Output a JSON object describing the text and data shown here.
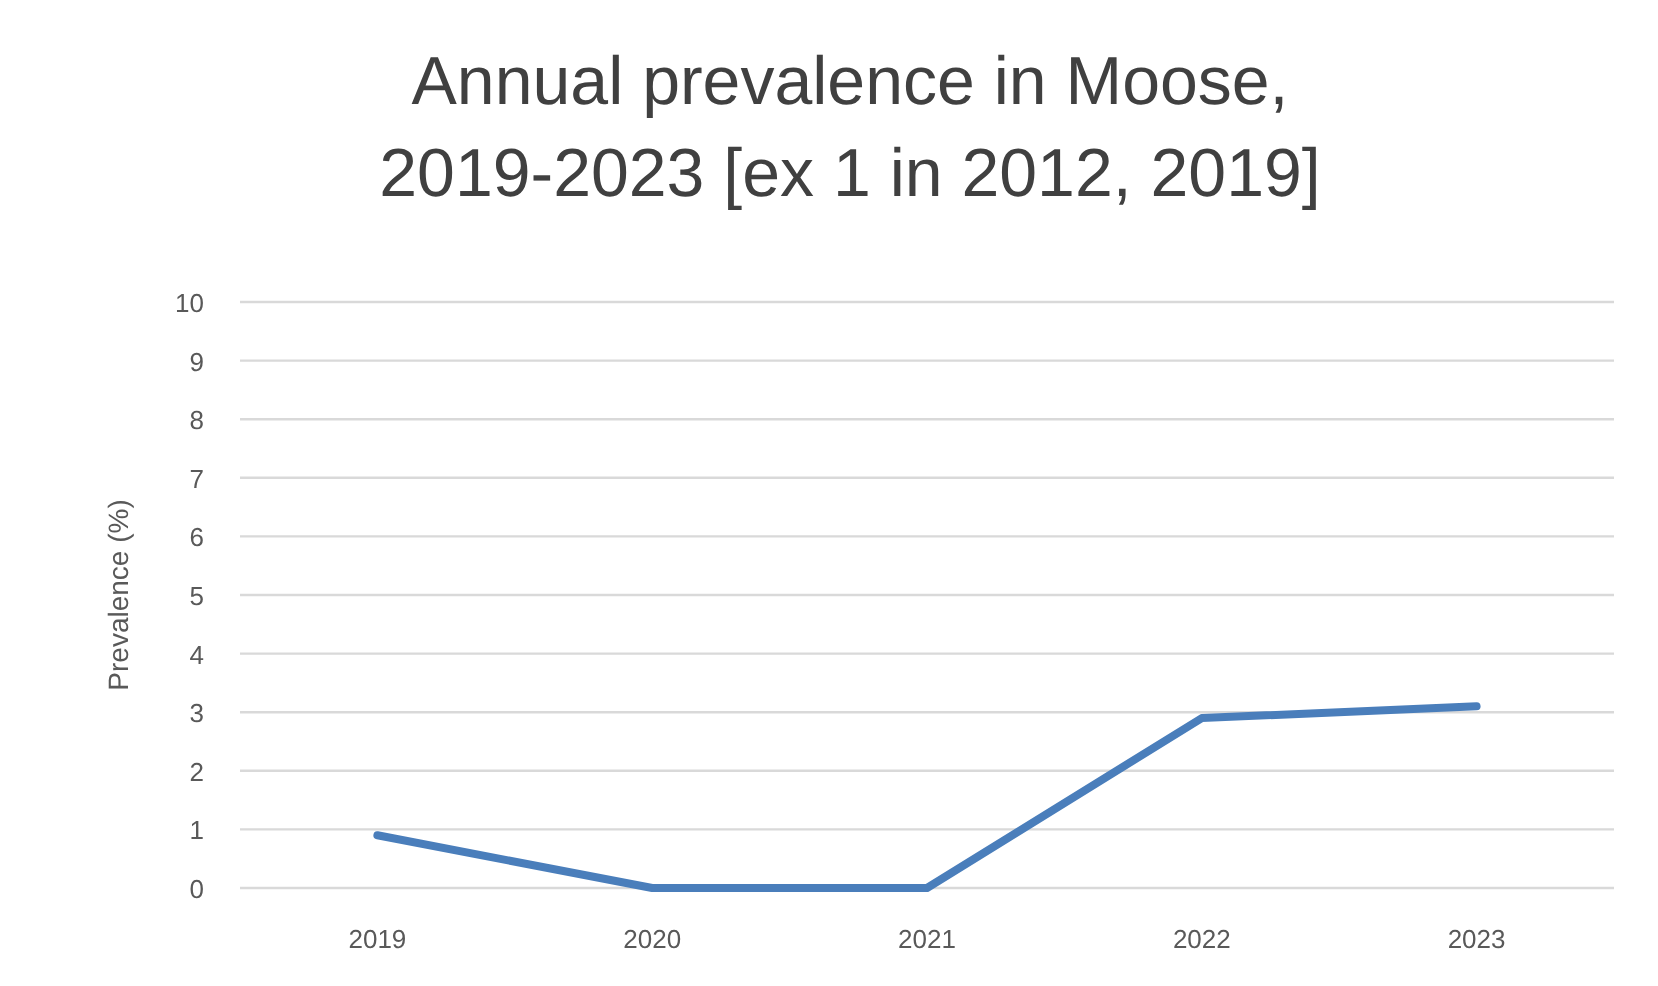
{
  "chart_data": {
    "type": "line",
    "title": "Annual prevalence in Moose, 2019-2023 [ex 1 in 2012, 2019]",
    "ylabel": "Prevalence (%)",
    "categories": [
      "2019",
      "2020",
      "2021",
      "2022",
      "2023"
    ],
    "series": [
      {
        "color": "#4a7ebb",
        "values": [
          0.9,
          0,
          0,
          2.9,
          3.1
        ]
      }
    ],
    "ylim": [
      0,
      10
    ],
    "yticks": [
      0,
      1,
      2,
      3,
      4,
      5,
      6,
      7,
      8,
      9,
      10
    ],
    "grid": "y",
    "marker": "none",
    "line_style": "solid"
  }
}
